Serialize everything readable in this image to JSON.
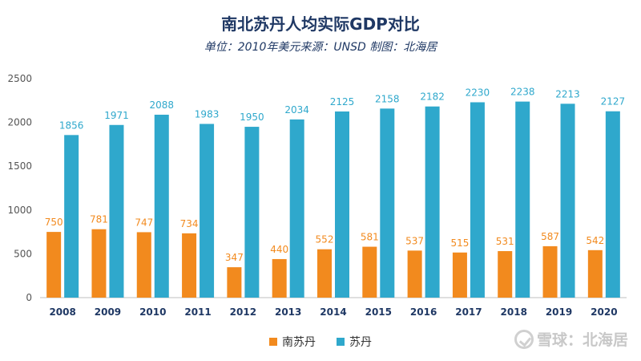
{
  "chart_data": {
    "type": "bar",
    "title": "南北苏丹人均实际GDP对比",
    "subtitle": "单位：2010年美元来源：UNSD 制图：北海居",
    "categories": [
      "2008",
      "2009",
      "2010",
      "2011",
      "2012",
      "2013",
      "2014",
      "2015",
      "2016",
      "2017",
      "2018",
      "2019",
      "2020"
    ],
    "series": [
      {
        "name": "南苏丹",
        "color": "#f28a1e",
        "values": [
          750,
          781,
          747,
          734,
          347,
          440,
          552,
          581,
          537,
          515,
          531,
          587,
          542
        ]
      },
      {
        "name": "苏丹",
        "color": "#2fa8cc",
        "values": [
          1856,
          1971,
          2088,
          1983,
          1950,
          2034,
          2125,
          2158,
          2182,
          2230,
          2238,
          2213,
          2127
        ]
      }
    ],
    "ylim": [
      0,
      2500
    ],
    "yticks": [
      0,
      500,
      1000,
      1500,
      2000,
      2500
    ],
    "grid": false,
    "legend_position": "bottom-center",
    "data_labels": true
  },
  "watermark": {
    "icon": "snowball-logo-icon",
    "text": "雪球：北海居"
  }
}
